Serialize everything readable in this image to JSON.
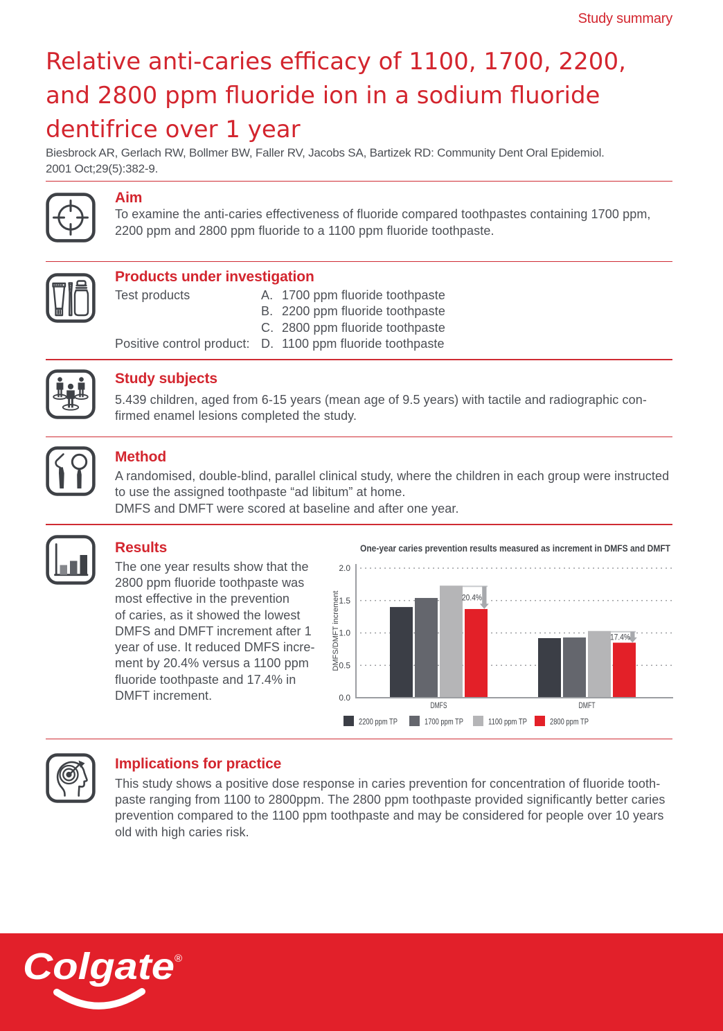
{
  "colors": {
    "text_red": "#d3252e",
    "rule_red": "#cf2b33",
    "bright_red": "#e2202a",
    "text_gray": "#4b4e54",
    "chart_text": "#3f4247",
    "icon": "#3e4146",
    "axis_gray": "#9b9da1",
    "grid_dot": "#87898d",
    "arrow_gray": "#a7a9ad",
    "annotation_border": "#c9cbce"
  },
  "header": {
    "kicker": "Study summary",
    "title_lines": [
      "Relative anti-caries efficacy of 1100, 1700, 2200,",
      "and 2800 ppm fluoride ion in a sodium fluoride",
      "dentifrice over 1 year"
    ],
    "citation_lines": [
      "Biesbrock AR, Gerlach RW, Bollmer BW, Faller RV, Jacobs SA, Bartizek RD: Community Dent Oral Epidemiol.",
      "2001 Oct;29(5):382-9."
    ]
  },
  "sections": {
    "aim": {
      "heading": "Aim",
      "body_lines": [
        "To examine the anti-caries effectiveness of fluoride compared toothpastes containing 1700 ppm,",
        "2200 ppm and 2800 ppm fluoride to a 1100 ppm fluoride toothpaste."
      ]
    },
    "products": {
      "heading": "Products under investigation",
      "rows": [
        {
          "label": "Test products",
          "letter": "A.",
          "text": "1700 ppm fluoride toothpaste"
        },
        {
          "label": "",
          "letter": "B.",
          "text": "2200 ppm fluoride toothpaste"
        },
        {
          "label": "",
          "letter": "C.",
          "text": "2800 ppm fluoride toothpaste"
        },
        {
          "label": "Positive control product:",
          "letter": "D.",
          "text": "1100 ppm fluoride toothpaste"
        }
      ]
    },
    "subjects": {
      "heading": "Study subjects",
      "body_lines": [
        "5.439 children, aged from 6-15 years (mean age of 9.5 years) with tactile and radiographic con-",
        "firmed enamel lesions completed the study."
      ]
    },
    "method": {
      "heading": "Method",
      "body_lines": [
        "A randomised, double-blind, parallel clinical study, where the children in each group were instructed",
        "to use the assigned toothpaste “ad libitum” at home.",
        "DMFS and DMFT were scored at baseline and after one year."
      ]
    },
    "results": {
      "heading": "Results",
      "body_lines": [
        "The one year results show that the",
        "2800 ppm fluoride toothpaste was",
        "most effective in the prevention",
        "of caries, as it showed the lowest",
        "DMFS and DMFT increment after 1",
        "year of use. It reduced DMFS incre-",
        "ment by 20.4% versus a 1100 ppm",
        "fluoride toothpaste and 17.4% in",
        "DMFT increment."
      ]
    },
    "implications": {
      "heading": "Implications for practice",
      "body_lines": [
        "This study shows a positive dose response in caries prevention for concentration of fluoride tooth-",
        "paste ranging from 1100 to 2800ppm. The 2800 ppm toothpaste provided significantly better caries",
        "prevention compared to the 1100 ppm toothpaste and may be considered for people over 10 years",
        "old with high caries risk."
      ]
    }
  },
  "chart_data": {
    "type": "bar",
    "title": "One-year caries prevention results measured as increment in DMFS and DMFT",
    "ylabel": "DMFS/DMFT increment",
    "ylim": [
      0,
      2.0
    ],
    "yticks": [
      0.0,
      0.5,
      1.0,
      1.5,
      2.0
    ],
    "grid": true,
    "legend_position": "bottom",
    "categories": [
      "DMFS",
      "DMFT"
    ],
    "series": [
      {
        "name": "2200 ppm TP",
        "color": "#3b3e46",
        "values": [
          1.4,
          0.92
        ]
      },
      {
        "name": "1700 ppm TP",
        "color": "#64666d",
        "values": [
          1.54,
          0.93
        ]
      },
      {
        "name": "1100 ppm TP",
        "color": "#b5b5b7",
        "values": [
          1.73,
          1.03
        ]
      },
      {
        "name": "2800 ppm TP",
        "color": "#e32028",
        "values": [
          1.37,
          0.85
        ]
      }
    ],
    "annotations": [
      {
        "category": "DMFS",
        "from_series": "1100 ppm TP",
        "to_series": "2800 ppm TP",
        "label": "20.4%"
      },
      {
        "category": "DMFT",
        "from_series": "1100 ppm TP",
        "to_series": "2800 ppm TP",
        "label": "17.4%"
      }
    ]
  },
  "footer": {
    "logo_text": "Colgate",
    "reg_mark": "®"
  }
}
